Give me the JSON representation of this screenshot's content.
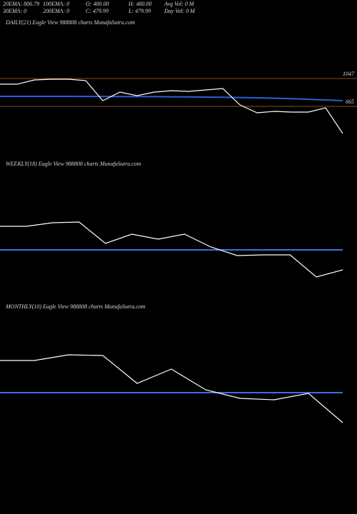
{
  "header": {
    "items": [
      [
        "20EMA: 806.79",
        "100EMA: 0",
        "O: 480.00",
        "H: 480.00",
        "Avg Vol: 0  M"
      ],
      [
        "30EMA: 0",
        "200EMA: 0",
        "C: 479.99",
        "L: 479.99",
        "Day Vol: 0  M"
      ]
    ]
  },
  "chart_data": [
    {
      "type": "line",
      "title": "DAILY(21) Eagle  View  988808  charts MunafaSutra.com",
      "categories": [
        null,
        null,
        null,
        null,
        null,
        null,
        null,
        null,
        null,
        null,
        null,
        null,
        null,
        null,
        null,
        null,
        null,
        null,
        null,
        null,
        null
      ],
      "series": [
        {
          "color": "#ffffff",
          "values": [
            969,
            969,
            1027,
            1037,
            1037,
            1018,
            743,
            861,
            812,
            861,
            880,
            871,
            890,
            910,
            685,
            577,
            596,
            587,
            587,
            645,
            293
          ]
        },
        {
          "color": "#2a5fd8",
          "values": [
            802,
            802,
            802,
            802,
            802,
            801,
            801,
            800,
            799,
            798,
            796,
            794,
            792,
            789,
            786,
            782,
            777,
            770,
            762,
            753,
            743
          ]
        }
      ],
      "hlines": [
        1047,
        665
      ],
      "hline_color": "#b8681e",
      "ylim": [
        0,
        1700
      ]
    },
    {
      "type": "line",
      "title": "WEEKLY(18) Eagle  View  988808  charts MunafaSutra.com",
      "categories": [
        null,
        null,
        null,
        null,
        null,
        null,
        null,
        null,
        null,
        null,
        null,
        null,
        null,
        null
      ],
      "series": [
        {
          "color": "#ffffff",
          "values": [
            61.5,
            61.5,
            64,
            64.5,
            49.5,
            56,
            52.5,
            56,
            47,
            41,
            41.5,
            41.5,
            26,
            31
          ]
        },
        {
          "color": "#3c6fe0",
          "values": [
            45,
            45,
            45,
            45,
            45,
            45,
            45,
            45,
            45,
            45,
            45,
            45,
            45,
            45
          ]
        }
      ],
      "ylim": [
        0,
        100
      ]
    },
    {
      "type": "line",
      "title": "MONTHLY(10) Eagle  View  988808  charts MunafaSutra.com",
      "categories": [
        null,
        null,
        null,
        null,
        null,
        null,
        null,
        null,
        null,
        null,
        null
      ],
      "series": [
        {
          "color": "#ffffff",
          "values": [
            67.5,
            67.5,
            71.5,
            71,
            51.5,
            61.5,
            47,
            41,
            40,
            44.5,
            24
          ]
        },
        {
          "color": "#3c6fe0",
          "values": [
            45,
            45,
            45,
            45,
            45,
            45,
            45,
            45,
            45,
            45,
            45
          ]
        }
      ],
      "ylim": [
        0,
        100
      ]
    }
  ]
}
